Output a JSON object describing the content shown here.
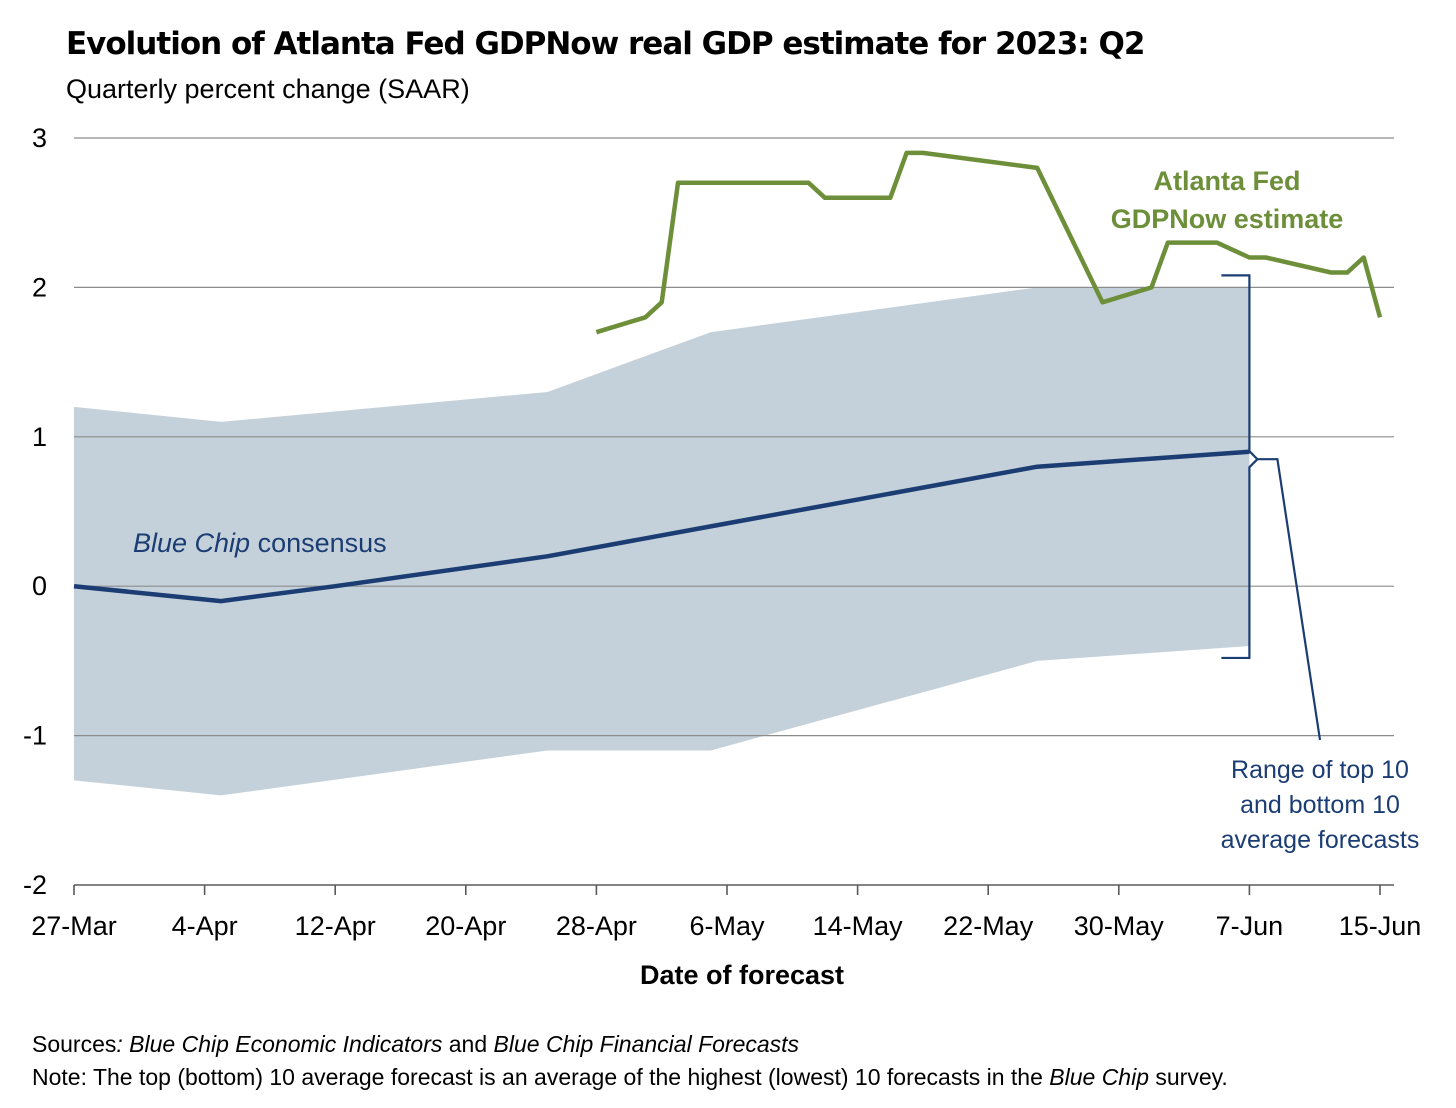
{
  "chart_data": {
    "type": "line",
    "title": "Evolution of Atlanta Fed GDPNow real GDP estimate for 2023: Q2",
    "subtitle": "Quarterly percent change (SAAR)",
    "xlabel": "Date of forecast",
    "ylabel": "",
    "ylim": [
      -2,
      3
    ],
    "yticks": [
      3,
      2,
      1,
      0,
      -1,
      -2
    ],
    "xlim": [
      "2023-03-27",
      "2023-06-15"
    ],
    "xticks": [
      "27-Mar",
      "4-Apr",
      "12-Apr",
      "20-Apr",
      "28-Apr",
      "6-May",
      "14-May",
      "22-May",
      "30-May",
      "7-Jun",
      "15-Jun"
    ],
    "grid": true,
    "series": [
      {
        "name": "Atlanta Fed GDPNow estimate",
        "color": "#6e8f3a",
        "x": [
          "2023-04-28",
          "2023-05-01",
          "2023-05-02",
          "2023-05-03",
          "2023-05-11",
          "2023-05-12",
          "2023-05-16",
          "2023-05-17",
          "2023-05-18",
          "2023-05-25",
          "2023-05-29",
          "2023-06-01",
          "2023-06-02",
          "2023-06-05",
          "2023-06-07",
          "2023-06-08",
          "2023-06-12",
          "2023-06-13",
          "2023-06-14",
          "2023-06-15"
        ],
        "y": [
          1.7,
          1.8,
          1.9,
          2.7,
          2.7,
          2.6,
          2.6,
          2.9,
          2.9,
          2.8,
          1.9,
          2.0,
          2.3,
          2.3,
          2.2,
          2.2,
          2.1,
          2.1,
          2.2,
          1.8
        ]
      },
      {
        "name": "Blue Chip consensus",
        "color": "#1b3d73",
        "x": [
          "2023-03-27",
          "2023-04-05",
          "2023-04-12",
          "2023-04-25",
          "2023-05-05",
          "2023-05-25",
          "2023-06-07"
        ],
        "y": [
          0.0,
          -0.1,
          0.0,
          0.2,
          0.4,
          0.8,
          0.9
        ]
      },
      {
        "name": "Range of top 10 and bottom 10 average forecasts",
        "type": "area",
        "color": "#c4d1da",
        "x": [
          "2023-03-27",
          "2023-04-05",
          "2023-04-25",
          "2023-05-05",
          "2023-05-25",
          "2023-06-07"
        ],
        "upper": [
          1.2,
          1.1,
          1.3,
          1.7,
          2.0,
          2.0
        ],
        "lower": [
          -1.3,
          -1.4,
          -1.1,
          -1.1,
          -0.5,
          -0.4
        ]
      }
    ],
    "annotations": {
      "gdpnow_label": [
        "Atlanta Fed",
        "GDPNow estimate"
      ],
      "bluechip_label_italic": "Blue Chip",
      "bluechip_label_rest": " consensus",
      "range_label": [
        "Range of top 10",
        "and bottom 10",
        "average forecasts"
      ]
    }
  },
  "notes": {
    "sources_label": "Sources",
    "sources_colon": ":",
    "sources_pub1": "Blue Chip Economic Indicators",
    "sources_and": " and ",
    "sources_pub2": "Blue Chip Financial Forecasts",
    "note_label": "Note:",
    "note_text": " The top (bottom) 10 average forecast is an average of the highest (lowest) 10 forecasts in the ",
    "note_italic": "Blue Chip",
    "note_end": " survey."
  }
}
